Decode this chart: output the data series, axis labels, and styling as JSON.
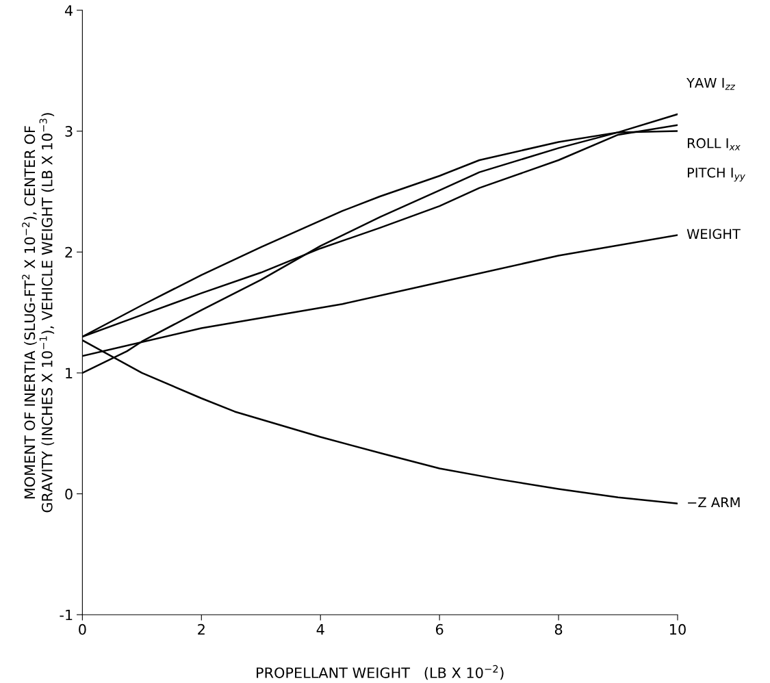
{
  "chart_data": {
    "type": "line",
    "xlabel": "PROPELLANT WEIGHT   (LB X 10$^{−2}$)",
    "ylabel": "MOMENT OF INERTIA (SLUG-FT$^{2}$ X 10$^{−2}$), CENTER OF\nGRAVITY (INCHES X 10$^{−1}$), VEHICLE WEIGHT (LB X 10$^{−3}$)",
    "xlim": [
      0,
      10
    ],
    "ylim": [
      -1,
      4
    ],
    "xticks": [
      0,
      2,
      4,
      6,
      8,
      10
    ],
    "yticks": [
      -1,
      0,
      1,
      2,
      3,
      4
    ],
    "grid": false,
    "legend": false,
    "marker": "none",
    "line_style": "solid",
    "series": [
      {
        "name": "YAW I$_{zz}$",
        "color": "#000000",
        "x": [
          0,
          0.75,
          1,
          2,
          3,
          4,
          5,
          6,
          6.67,
          8,
          9,
          10
        ],
        "values": [
          1.0,
          1.18,
          1.26,
          1.52,
          1.77,
          2.05,
          2.29,
          2.51,
          2.66,
          2.86,
          2.99,
          3.14
        ]
      },
      {
        "name": "ROLL I$_{xx}$",
        "color": "#000000",
        "x": [
          0,
          1,
          2,
          3,
          4,
          5,
          6,
          6.67,
          8,
          9,
          10
        ],
        "values": [
          1.3,
          1.48,
          1.66,
          1.83,
          2.03,
          2.2,
          2.38,
          2.53,
          2.76,
          2.97,
          3.05
        ]
      },
      {
        "name": "PITCH I$_{yy}$",
        "color": "#000000",
        "x": [
          0,
          1,
          2,
          3,
          4.37,
          5,
          6,
          6.67,
          8,
          9,
          10
        ],
        "values": [
          1.3,
          1.56,
          1.81,
          2.04,
          2.34,
          2.46,
          2.63,
          2.76,
          2.91,
          2.99,
          3.0
        ]
      },
      {
        "name": "WEIGHT",
        "color": "#000000",
        "x": [
          0,
          2,
          4.37,
          6,
          8,
          10
        ],
        "values": [
          1.14,
          1.37,
          1.57,
          1.75,
          1.97,
          2.14
        ]
      },
      {
        "name": "−Z ARM",
        "color": "#000000",
        "x": [
          0,
          1,
          2,
          2.56,
          4,
          5.06,
          6,
          7,
          8,
          9,
          10
        ],
        "values": [
          1.27,
          1.0,
          0.79,
          0.68,
          0.47,
          0.33,
          0.21,
          0.12,
          0.04,
          -0.03,
          -0.08
        ]
      }
    ]
  }
}
